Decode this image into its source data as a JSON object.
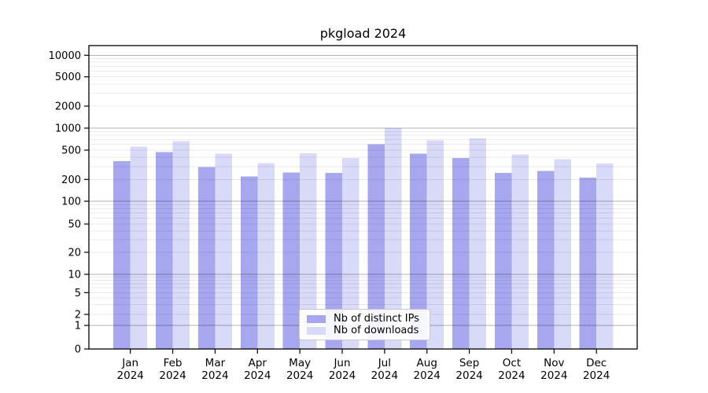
{
  "chart_data": {
    "type": "bar",
    "title": "pkgload 2024",
    "categories": [
      "Jan",
      "Feb",
      "Mar",
      "Apr",
      "May",
      "Jun",
      "Jul",
      "Aug",
      "Sep",
      "Oct",
      "Nov",
      "Dec"
    ],
    "x_tick_second_line": "2024",
    "series": [
      {
        "name": "Nb of distinct IPs",
        "color": "#a7a7f0",
        "values": [
          355,
          472,
          295,
          220,
          248,
          244,
          605,
          450,
          390,
          245,
          261,
          211
        ]
      },
      {
        "name": "Nb of downloads",
        "color": "#d9d9f8",
        "values": [
          558,
          668,
          445,
          332,
          455,
          390,
          1005,
          685,
          725,
          435,
          378,
          331
        ]
      }
    ],
    "y_ticks": [
      0,
      1,
      2,
      5,
      10,
      20,
      50,
      100,
      200,
      500,
      1000,
      2000,
      5000,
      10000
    ],
    "y_scale": "symlog",
    "ylim": [
      0,
      13000
    ],
    "grid": true,
    "legend_position": "lower center"
  }
}
